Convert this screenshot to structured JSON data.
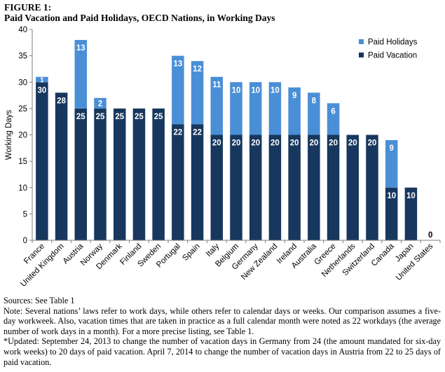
{
  "figure": {
    "label": "FIGURE 1:",
    "title": "Paid Vacation and Paid Holidays, OECD Nations, in Working Days"
  },
  "chart_data": {
    "type": "bar",
    "stacked": true,
    "categories": [
      "France",
      "United Kingdom",
      "Austria",
      "Norway",
      "Denmark",
      "Finland",
      "Sweden",
      "Portugal",
      "Spain",
      "Italy",
      "Belgium",
      "Germany",
      "New Zealand",
      "Ireland",
      "Australia",
      "Greece",
      "Netherlands",
      "Switzerland",
      "Canada",
      "Japan",
      "United States"
    ],
    "series": [
      {
        "name": "Paid Vacation",
        "color": "#17375e",
        "values": [
          30,
          28,
          25,
          25,
          25,
          25,
          25,
          22,
          22,
          20,
          20,
          20,
          20,
          20,
          20,
          20,
          20,
          20,
          10,
          10,
          0
        ]
      },
      {
        "name": "Paid Holidays",
        "color": "#4a8fd6",
        "values": [
          1,
          0,
          13,
          2,
          0,
          0,
          0,
          13,
          12,
          11,
          10,
          10,
          10,
          9,
          8,
          6,
          0,
          0,
          9,
          0,
          0
        ]
      }
    ],
    "ylabel": "Working Days",
    "ylim": [
      0,
      40
    ],
    "yticks": [
      0,
      5,
      10,
      15,
      20,
      25,
      30,
      35,
      40
    ],
    "legend_position": "top-right",
    "grid": false
  },
  "notes": {
    "sources": "Sources: See Table 1",
    "note": "Note: Several nations’ laws refer to work days, while others refer to calendar days or weeks. Our comparison assumes a five-day workweek. Also, vacation times that are taken in practice as a full calendar month were noted as 22 workdays (the average number of work days in a month). For a more precise listing, see Table 1.",
    "updated": "*Updated: September 24, 2013 to change the number of vacation days in Germany from 24 (the amount mandated for six-day work weeks) to 20 days of paid vacation. April 7, 2014 to change the number of vacation days in Austria from 22 to 25 days of paid vacation."
  }
}
